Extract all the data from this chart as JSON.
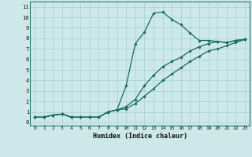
{
  "xlabel": "Humidex (Indice chaleur)",
  "ylabel": "",
  "bg_color": "#cce8e8",
  "line_color": "#1a6b5a",
  "grid_color": "#aacfcf",
  "xlim": [
    -0.5,
    23.5
  ],
  "ylim": [
    -0.3,
    11.5
  ],
  "xticks": [
    0,
    1,
    2,
    3,
    4,
    5,
    6,
    7,
    8,
    9,
    10,
    11,
    12,
    13,
    14,
    15,
    16,
    17,
    18,
    19,
    20,
    21,
    22,
    23
  ],
  "yticks": [
    0,
    1,
    2,
    3,
    4,
    5,
    6,
    7,
    8,
    9,
    10,
    11
  ],
  "curve1_x": [
    0,
    1,
    2,
    3,
    4,
    5,
    6,
    7,
    8,
    9,
    10,
    11,
    12,
    13,
    14,
    15,
    16,
    17,
    18,
    19,
    20,
    21,
    22,
    23
  ],
  "curve1_y": [
    0.5,
    0.5,
    0.7,
    0.8,
    0.5,
    0.5,
    0.5,
    0.5,
    1.0,
    1.2,
    3.5,
    7.5,
    8.6,
    10.4,
    10.5,
    9.8,
    9.3,
    8.5,
    7.8,
    7.8,
    7.7,
    7.6,
    7.8,
    7.9
  ],
  "curve2_x": [
    0,
    1,
    2,
    3,
    4,
    5,
    6,
    7,
    8,
    9,
    10,
    11,
    12,
    13,
    14,
    15,
    16,
    17,
    18,
    19,
    20,
    21,
    22,
    23
  ],
  "curve2_y": [
    0.5,
    0.5,
    0.7,
    0.8,
    0.5,
    0.5,
    0.5,
    0.5,
    1.0,
    1.2,
    1.5,
    2.2,
    3.5,
    4.5,
    5.3,
    5.8,
    6.2,
    6.8,
    7.2,
    7.5,
    7.7,
    7.6,
    7.8,
    7.9
  ],
  "curve3_x": [
    0,
    1,
    2,
    3,
    4,
    5,
    6,
    7,
    8,
    9,
    10,
    11,
    12,
    13,
    14,
    15,
    16,
    17,
    18,
    19,
    20,
    21,
    22,
    23
  ],
  "curve3_y": [
    0.5,
    0.5,
    0.7,
    0.8,
    0.5,
    0.5,
    0.5,
    0.5,
    1.0,
    1.2,
    1.3,
    1.8,
    2.5,
    3.2,
    4.0,
    4.6,
    5.2,
    5.8,
    6.3,
    6.8,
    7.0,
    7.3,
    7.6,
    7.9
  ]
}
